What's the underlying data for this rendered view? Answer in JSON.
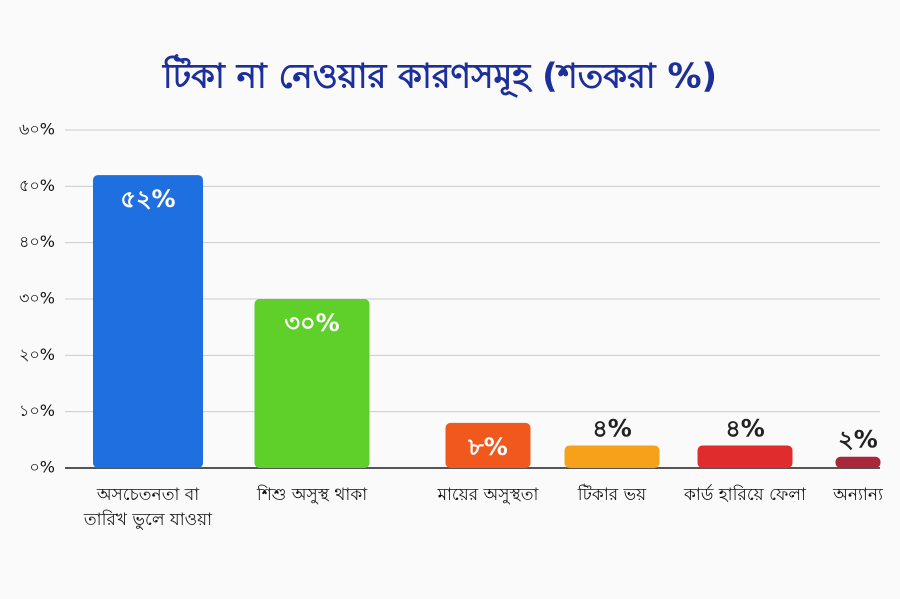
{
  "chart_data": {
    "type": "bar",
    "title": "টিকা না নেওয়ার কারণসমূহ (শতকরা %)",
    "categories": [
      "অসচেতনতা বা তারিখ ভুলে যাওয়া",
      "শিশু অসুস্থ থাকা",
      "মায়ের অসুস্থতা",
      "টিকার ভয়",
      "কার্ড হারিয়ে ফেলা",
      "অন্যান্য"
    ],
    "values": [
      52,
      30,
      8,
      4,
      4,
      2
    ],
    "value_labels": [
      "৫২%",
      "৩০%",
      "৮%",
      "৪%",
      "৪%",
      "২%"
    ],
    "colors": [
      "#1e6fe0",
      "#5fcf2a",
      "#f0581e",
      "#f7a11a",
      "#e02c2c",
      "#a8283a"
    ],
    "ylim": [
      0,
      60
    ],
    "yticks": [
      {
        "value": 0,
        "label": "০%"
      },
      {
        "value": 10,
        "label": "১০%"
      },
      {
        "value": 20,
        "label": "২০%"
      },
      {
        "value": 30,
        "label": "৩০%"
      },
      {
        "value": 40,
        "label": "৪০%"
      },
      {
        "value": 50,
        "label": "৫০%"
      },
      {
        "value": 60,
        "label": "৬০%"
      }
    ],
    "grid": true
  }
}
